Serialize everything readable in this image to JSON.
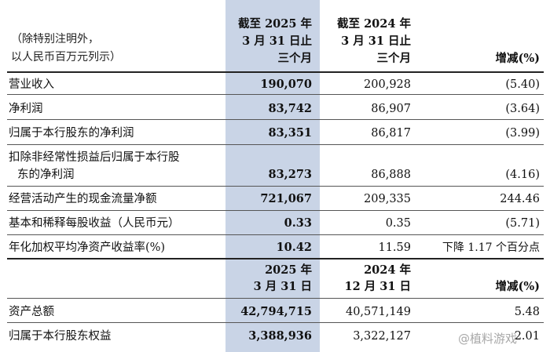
{
  "header": {
    "note_line1": "（除特别注明外，",
    "note_line2": "以人民币百万元列示）",
    "col1_line1": "截至 2025 年",
    "col1_line2": "3 月 31 日止",
    "col1_line3": "三个月",
    "col2_line1": "截至 2024 年",
    "col2_line2": "3 月 31 日止",
    "col2_line3": "三个月",
    "col3": "增减(%)"
  },
  "income_rows": [
    {
      "label": "营业收入",
      "v2025": "190,070",
      "v2024": "200,928",
      "change": "(5.40)"
    },
    {
      "label": "净利润",
      "v2025": "83,742",
      "v2024": "86,907",
      "change": "(3.64)"
    },
    {
      "label": "归属于本行股东的净利润",
      "v2025": "83,351",
      "v2024": "86,817",
      "change": "(3.99)"
    },
    {
      "label": "扣除非经常性损益后归属于本行股",
      "label2": "东的净利润",
      "v2025": "83,273",
      "v2024": "86,888",
      "change": "(4.16)"
    },
    {
      "label": "经营活动产生的现金流量净额",
      "v2025": "721,067",
      "v2024": "209,335",
      "change": "244.46"
    },
    {
      "label": "基本和稀释每股收益（人民币元）",
      "v2025": "0.33",
      "v2024": "0.35",
      "change": "(5.71)"
    },
    {
      "label": "年化加权平均净资产收益率(%)",
      "v2025": "10.42",
      "v2024": "11.59",
      "change": "下降 1.17 个百分点"
    }
  ],
  "header2": {
    "col1_line1": "2025 年",
    "col1_line2": "3 月 31 日",
    "col2_line1": "2024 年",
    "col2_line2": "12 月 31 日",
    "col3": "增减(%)"
  },
  "balance_rows": [
    {
      "label": "资产总额",
      "v2025": "42,794,715",
      "v2024": "40,571,149",
      "change": "5.48"
    },
    {
      "label": "归属于本行股东权益",
      "v2025": "3,388,936",
      "v2024": "3,322,127",
      "change": "2.01"
    }
  ],
  "watermark": "@植料游戏"
}
